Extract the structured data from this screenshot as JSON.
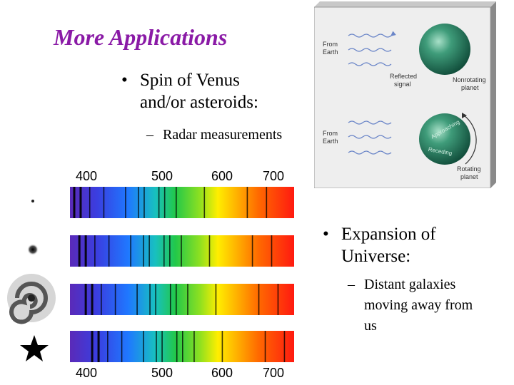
{
  "slide": {
    "title": "More Applications",
    "bullet1": {
      "lines": [
        "Spin of Venus",
        "and/or asteroids:"
      ],
      "sub": "Radar measurements"
    },
    "bullet2": {
      "lines": [
        "Expansion of",
        "Universe:"
      ],
      "sub_lines": [
        "Distant galaxies",
        "moving away from",
        "us"
      ]
    }
  },
  "radar_diagram": {
    "labels": {
      "from_earth": "From Earth",
      "reflected_signal": "Reflected signal",
      "nonrotating_planet": "Nonrotating planet",
      "rotating_planet": "Rotating planet",
      "approaching": "Approaching",
      "receding": "Receding"
    },
    "planet_color": "#2f8a6a"
  },
  "spectra": {
    "wavelength_ticks_nm": [
      400,
      500,
      600,
      700
    ],
    "wavelength_range_nm": [
      380,
      730
    ],
    "reference_lines_nm": [
      385,
      395,
      410,
      432,
      466,
      486,
      495,
      518,
      527,
      545,
      589,
      656,
      686
    ],
    "rows": [
      {
        "object": "star-small-dot",
        "shift_nm": 0
      },
      {
        "object": "small-galaxy",
        "shift_nm": 8
      },
      {
        "object": "spiral-galaxy",
        "shift_nm": 18
      },
      {
        "object": "distant-galaxy",
        "shift_nm": 28
      }
    ]
  }
}
